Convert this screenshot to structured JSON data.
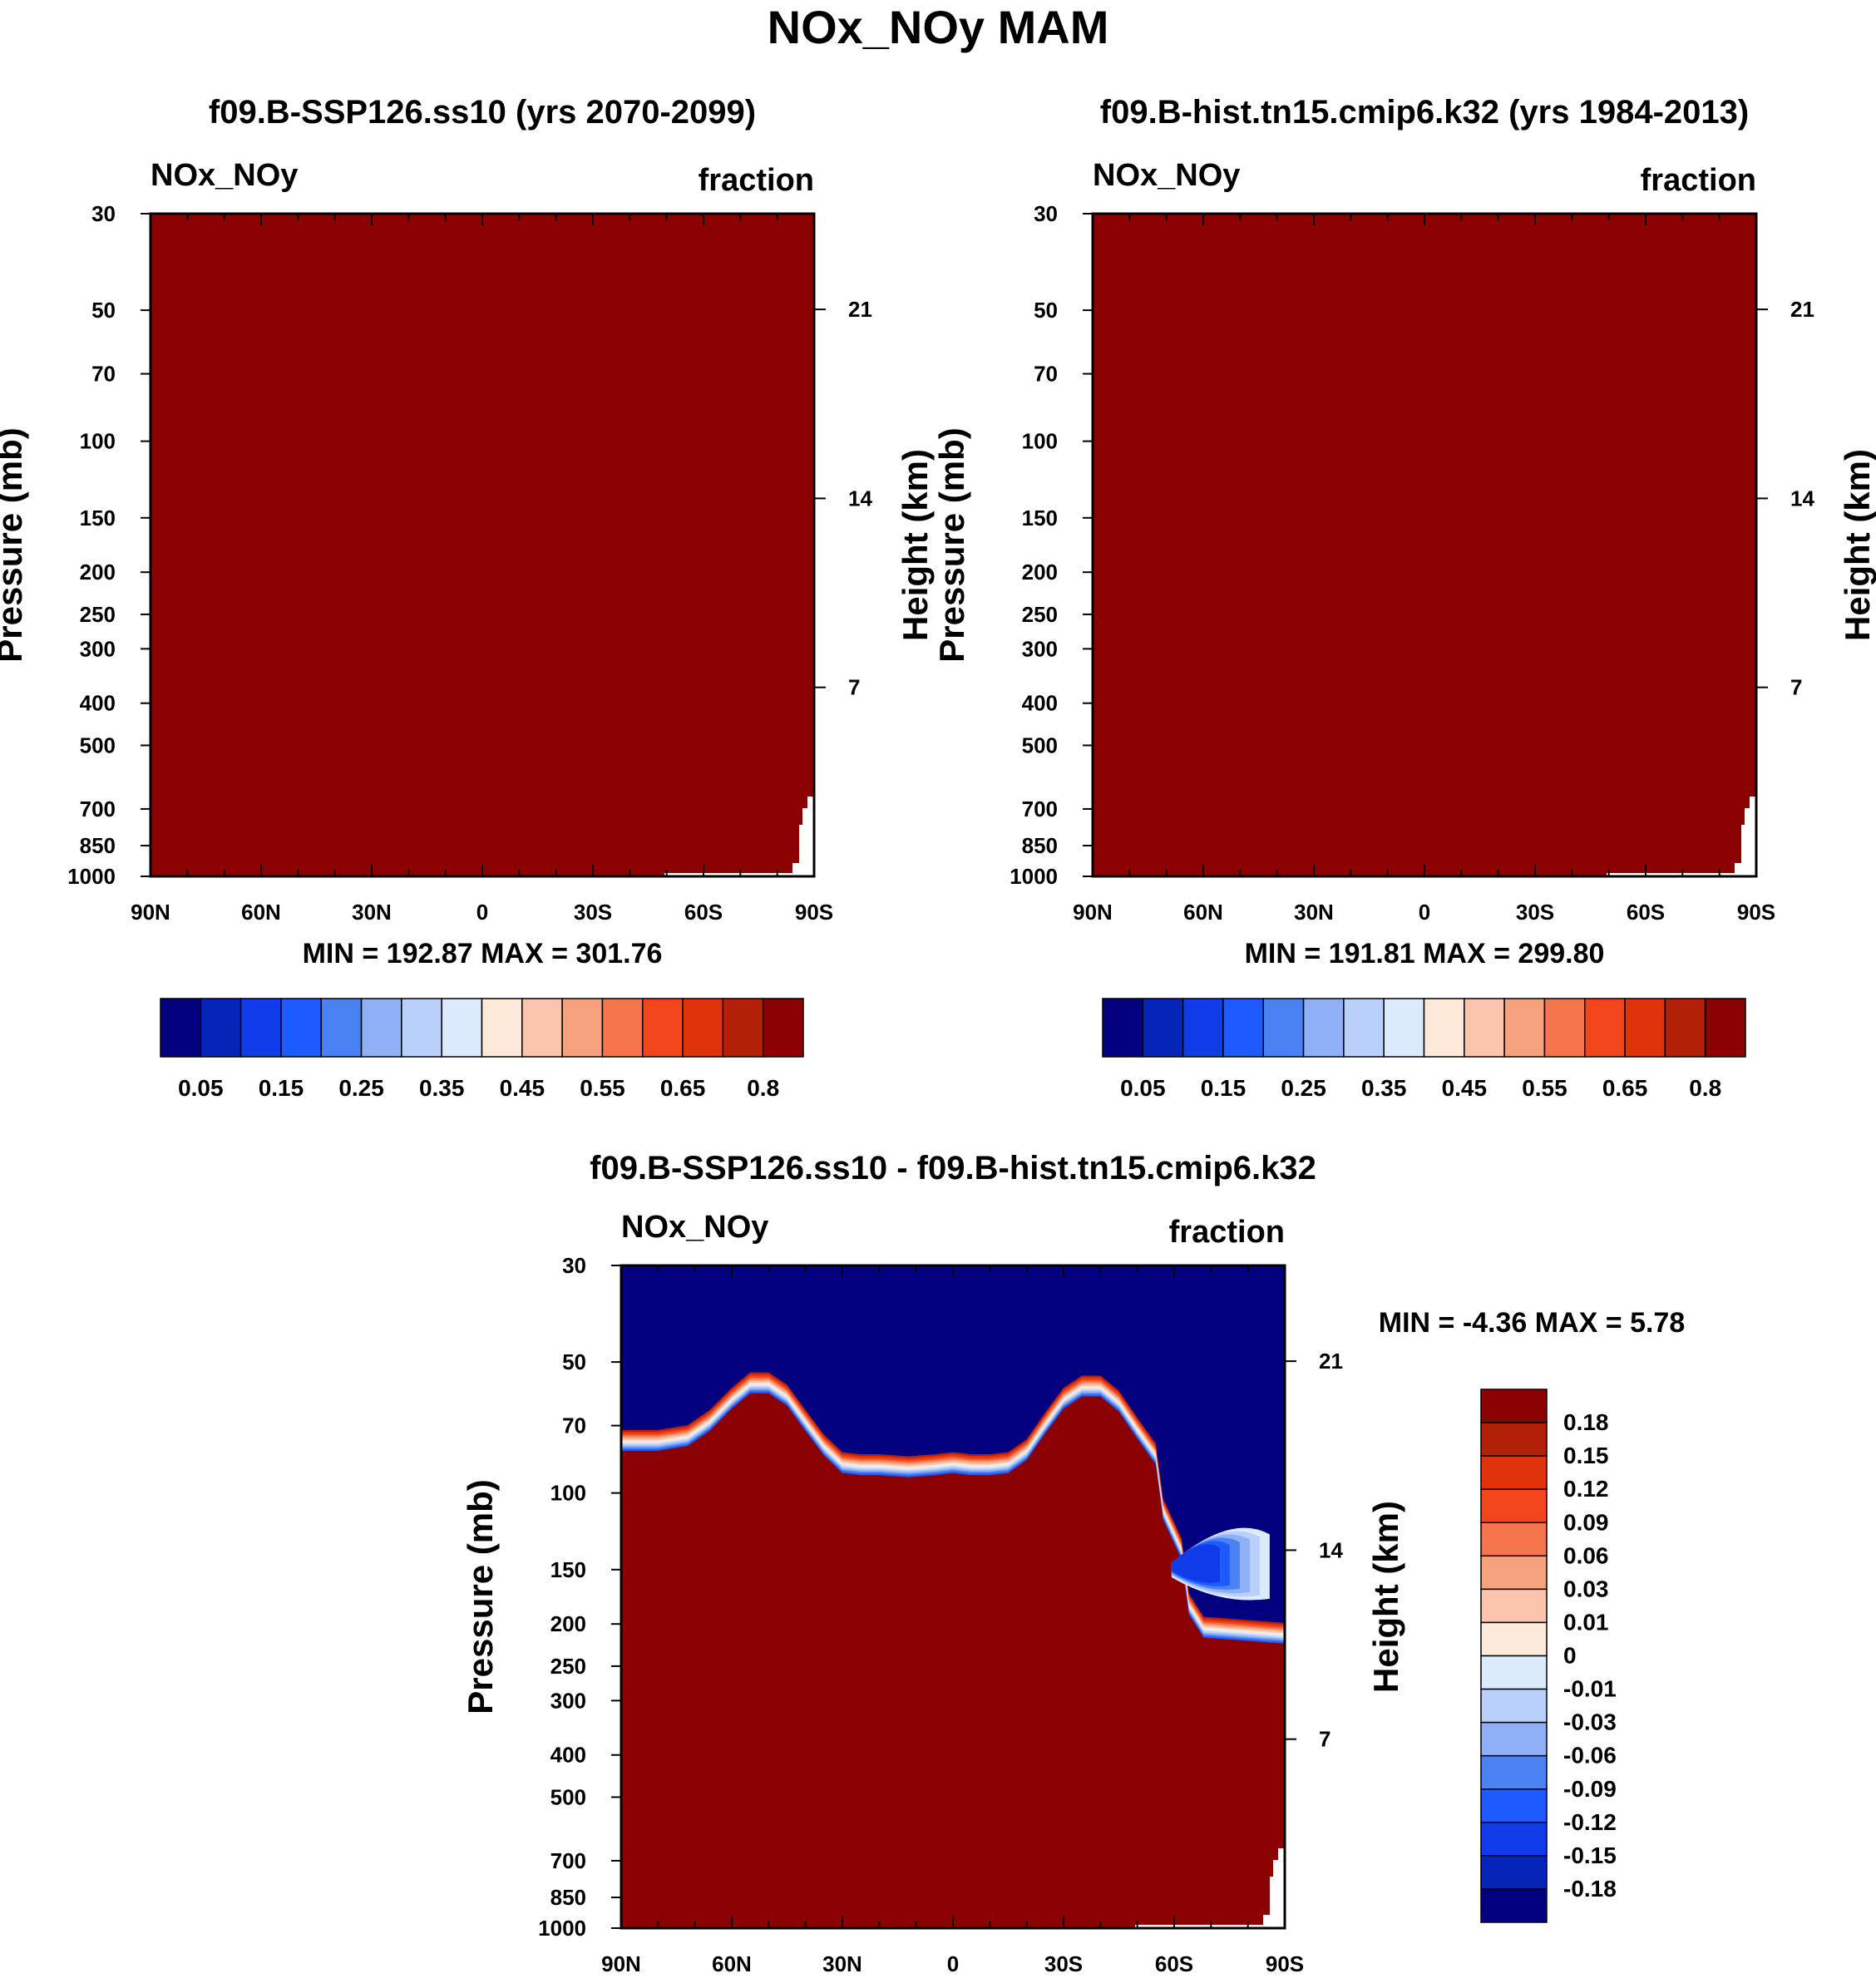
{
  "figure": {
    "title": "NOx_NOy MAM"
  },
  "chart_data": [
    {
      "type": "heatmap",
      "id": "panel-ssp126",
      "title": "f09.B-SSP126.ss10 (yrs 2070-2099)",
      "variable": "NOx_NOy",
      "units": "fraction",
      "ylabel": "Pressure (mb)",
      "ylabel_right": "Height (km)",
      "x_ticks": [
        "90N",
        "60N",
        "30N",
        "0",
        "30S",
        "60S",
        "90S"
      ],
      "x_tick_values": [
        90,
        60,
        30,
        0,
        -30,
        -60,
        -90
      ],
      "y_ticks": [
        "30",
        "50",
        "70",
        "100",
        "150",
        "200",
        "250",
        "300",
        "400",
        "500",
        "700",
        "850",
        "1000"
      ],
      "y_tick_values": [
        30,
        50,
        70,
        100,
        150,
        200,
        250,
        300,
        400,
        500,
        700,
        850,
        1000
      ],
      "y_ticks_right": [
        "21",
        "14",
        "7"
      ],
      "y_tick_right_values": [
        21,
        14,
        7
      ],
      "ylim": [
        1000,
        30
      ],
      "fill_color": "#8b0000",
      "stats": "MIN = 192.87  MAX = 301.76",
      "colorbar_labels": [
        "0.05",
        "0.15",
        "0.25",
        "0.35",
        "0.45",
        "0.55",
        "0.65",
        "0.8"
      ],
      "colorbar_colors": [
        "#02007f",
        "#0524b8",
        "#0f3ce8",
        "#1e5bff",
        "#4a82f4",
        "#8fb0f6",
        "#b8d0fa",
        "#dcebfb",
        "#fdeadb",
        "#fbc5ad",
        "#f6a27c",
        "#f4744c",
        "#f4461d",
        "#e0330b",
        "#b22007",
        "#8b0000"
      ]
    },
    {
      "type": "heatmap",
      "id": "panel-hist",
      "title": "f09.B-hist.tn15.cmip6.k32 (yrs 1984-2013)",
      "variable": "NOx_NOy",
      "units": "fraction",
      "ylabel": "Pressure (mb)",
      "ylabel_right": "Height (km)",
      "x_ticks": [
        "90N",
        "60N",
        "30N",
        "0",
        "30S",
        "60S",
        "90S"
      ],
      "x_tick_values": [
        90,
        60,
        30,
        0,
        -30,
        -60,
        -90
      ],
      "y_ticks": [
        "30",
        "50",
        "70",
        "100",
        "150",
        "200",
        "250",
        "300",
        "400",
        "500",
        "700",
        "850",
        "1000"
      ],
      "y_tick_values": [
        30,
        50,
        70,
        100,
        150,
        200,
        250,
        300,
        400,
        500,
        700,
        850,
        1000
      ],
      "y_ticks_right": [
        "21",
        "14",
        "7"
      ],
      "y_tick_right_values": [
        21,
        14,
        7
      ],
      "ylim": [
        1000,
        30
      ],
      "fill_color": "#8b0000",
      "stats": "MIN = 191.81  MAX = 299.80",
      "colorbar_labels": [
        "0.05",
        "0.15",
        "0.25",
        "0.35",
        "0.45",
        "0.55",
        "0.65",
        "0.8"
      ],
      "colorbar_colors": [
        "#02007f",
        "#0524b8",
        "#0f3ce8",
        "#1e5bff",
        "#4a82f4",
        "#8fb0f6",
        "#b8d0fa",
        "#dcebfb",
        "#fdeadb",
        "#fbc5ad",
        "#f6a27c",
        "#f4744c",
        "#f4461d",
        "#e0330b",
        "#b22007",
        "#8b0000"
      ]
    },
    {
      "type": "heatmap",
      "id": "panel-diff",
      "title": "f09.B-SSP126.ss10 - f09.B-hist.tn15.cmip6.k32",
      "variable": "NOx_NOy",
      "units": "fraction",
      "ylabel": "Pressure (mb)",
      "ylabel_right": "Height (km)",
      "x_ticks": [
        "90N",
        "60N",
        "30N",
        "0",
        "30S",
        "60S",
        "90S"
      ],
      "x_tick_values": [
        90,
        60,
        30,
        0,
        -30,
        -60,
        -90
      ],
      "y_ticks": [
        "30",
        "50",
        "70",
        "100",
        "150",
        "200",
        "250",
        "300",
        "400",
        "500",
        "700",
        "850",
        "1000"
      ],
      "y_tick_values": [
        30,
        50,
        70,
        100,
        150,
        200,
        250,
        300,
        400,
        500,
        700,
        850,
        1000
      ],
      "y_ticks_right": [
        "21",
        "14",
        "7"
      ],
      "y_tick_right_values": [
        21,
        14,
        7
      ],
      "ylim": [
        1000,
        30
      ],
      "stats": "MIN =  -4.36  MAX =   5.78",
      "upper_region_color": "#02007f",
      "lower_region_color": "#8b0000",
      "transition_colors": [
        "#1e5bff",
        "#4a82f4",
        "#8fb0f6",
        "#b8d0fa",
        "#dcebfb",
        "#fdeadb",
        "#fbc5ad",
        "#f6a27c",
        "#f4744c",
        "#f4461d",
        "#e0330b",
        "#b22007"
      ],
      "boundary_lat": [
        90,
        80,
        72,
        66,
        60,
        55,
        50,
        45,
        40,
        35,
        30,
        25,
        20,
        12,
        5,
        0,
        -5,
        -10,
        -15,
        -20,
        -25,
        -30,
        -35,
        -40,
        -45,
        -50,
        -55
      ],
      "boundary_pressure": [
        80,
        80,
        78,
        72,
        64,
        59,
        59,
        63,
        72,
        82,
        90,
        91,
        91,
        92,
        91,
        90,
        91,
        91,
        90,
        84,
        73,
        64,
        60,
        60,
        65,
        75,
        86
      ],
      "colorbar_labels": [
        "0.18",
        "0.15",
        "0.12",
        "0.09",
        "0.06",
        "0.03",
        "0.01",
        "0",
        "-0.01",
        "-0.03",
        "-0.06",
        "-0.09",
        "-0.12",
        "-0.15",
        "-0.18"
      ],
      "colorbar_colors": [
        "#8b0000",
        "#b22007",
        "#e0330b",
        "#f4461d",
        "#f4744c",
        "#f6a27c",
        "#fbc5ad",
        "#fdeadb",
        "#dcebfb",
        "#b8d0fa",
        "#8fb0f6",
        "#4a82f4",
        "#1e5bff",
        "#0f3ce8",
        "#0524b8",
        "#02007f"
      ]
    }
  ]
}
